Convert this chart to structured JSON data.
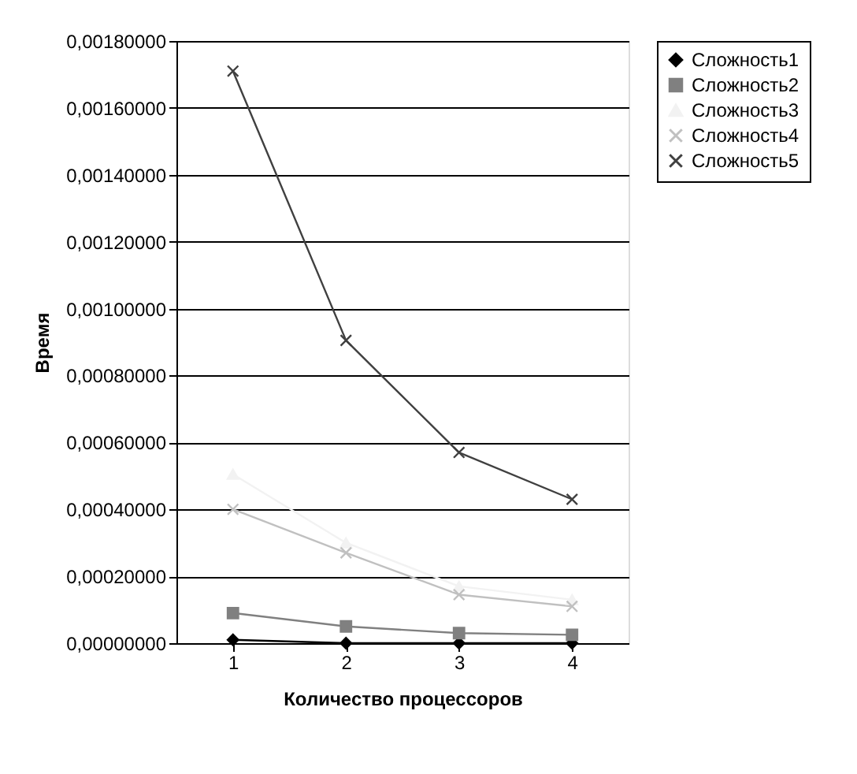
{
  "chart_data": {
    "type": "line",
    "xlabel": "Количество процессоров",
    "ylabel": "Время",
    "categories": [
      "1",
      "2",
      "3",
      "4"
    ],
    "series": [
      {
        "name": "Сложность1",
        "color": "#000000",
        "marker": "diamond",
        "values": [
          1e-05,
          0,
          0,
          0
        ]
      },
      {
        "name": "Сложность2",
        "color": "#808080",
        "marker": "square",
        "values": [
          9e-05,
          5e-05,
          3e-05,
          2.5e-05
        ]
      },
      {
        "name": "Сложность3",
        "color": "#f2f2f2",
        "marker": "triangle",
        "values": [
          0.000505,
          0.0003,
          0.00017,
          0.00013
        ]
      },
      {
        "name": "Сложность4",
        "color": "#c0c0c0",
        "marker": "cross",
        "values": [
          0.0004,
          0.00027,
          0.000145,
          0.00011
        ]
      },
      {
        "name": "Сложность5",
        "color": "#404040",
        "marker": "cross",
        "values": [
          0.00171,
          0.000905,
          0.00057,
          0.00043
        ]
      }
    ],
    "ylim": [
      0,
      0.0018
    ],
    "yticks": [
      {
        "value": 0,
        "label": "0,00000000"
      },
      {
        "value": 0.0002,
        "label": "0,00020000"
      },
      {
        "value": 0.0004,
        "label": "0,00040000"
      },
      {
        "value": 0.0006,
        "label": "0,00060000"
      },
      {
        "value": 0.0008,
        "label": "0,00080000"
      },
      {
        "value": 0.001,
        "label": "0,00100000"
      },
      {
        "value": 0.0012,
        "label": "0,00120000"
      },
      {
        "value": 0.0014,
        "label": "0,00140000"
      },
      {
        "value": 0.0016,
        "label": "0,00160000"
      },
      {
        "value": 0.0018,
        "label": "0,00180000"
      }
    ],
    "grid": "y",
    "legend": "right",
    "line_style": "solid"
  }
}
